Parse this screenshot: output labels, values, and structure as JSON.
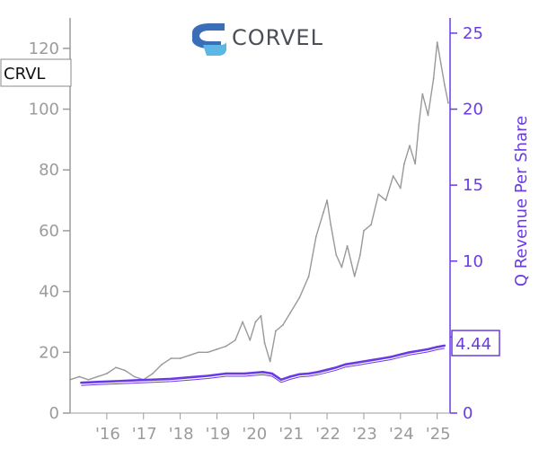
{
  "logo": {
    "text": "CORVEL"
  },
  "ticker": "CRVL",
  "last_value_label": "4.44",
  "colors": {
    "price": "#999999",
    "revenue": "#6a3be4",
    "left_axis": "#9b9b9b",
    "logo_blue_dark": "#3a6fb8",
    "logo_blue_light": "#5db7e4"
  },
  "chart_data": {
    "type": "line",
    "xlabel": "",
    "ylabel_left": "",
    "ylabel_right": "Q Revenue Per Share",
    "x_tick_labels": [
      "'16",
      "'17",
      "'18",
      "'19",
      "'20",
      "'21",
      "'22",
      "'23",
      "'24",
      "'25"
    ],
    "x_tick_years": [
      2016,
      2017,
      2018,
      2019,
      2020,
      2021,
      2022,
      2023,
      2024,
      2025
    ],
    "xlim": [
      2015.0,
      2025.35
    ],
    "ylim_left": [
      0,
      130
    ],
    "yticks_left": [
      0,
      20,
      40,
      60,
      80,
      100,
      120
    ],
    "ylim_right": [
      0,
      26
    ],
    "yticks_right": [
      0,
      5,
      10,
      15,
      20,
      25
    ],
    "series": [
      {
        "axis": "left",
        "x": [
          2015.0,
          2015.25,
          2015.5,
          2015.75,
          2016.0,
          2016.25,
          2016.5,
          2016.75,
          2017.0,
          2017.25,
          2017.5,
          2017.75,
          2018.0,
          2018.25,
          2018.5,
          2018.75,
          2019.0,
          2019.25,
          2019.5,
          2019.7,
          2019.9,
          2020.05,
          2020.2,
          2020.3,
          2020.45,
          2020.6,
          2020.8,
          2021.0,
          2021.25,
          2021.5,
          2021.7,
          2021.9,
          2022.0,
          2022.1,
          2022.25,
          2022.4,
          2022.55,
          2022.75,
          2022.9,
          2023.0,
          2023.2,
          2023.4,
          2023.6,
          2023.8,
          2024.0,
          2024.1,
          2024.25,
          2024.4,
          2024.5,
          2024.6,
          2024.75,
          2024.9,
          2025.0,
          2025.1,
          2025.2,
          2025.3
        ],
        "values": [
          11,
          12,
          11,
          12,
          13,
          15,
          14,
          12,
          11,
          13,
          16,
          18,
          18,
          19,
          20,
          20,
          21,
          22,
          24,
          30,
          24,
          30,
          32,
          23,
          17,
          27,
          29,
          33,
          38,
          45,
          58,
          66,
          70,
          62,
          52,
          48,
          55,
          45,
          52,
          60,
          62,
          72,
          70,
          78,
          74,
          82,
          88,
          82,
          95,
          105,
          98,
          110,
          122,
          115,
          108,
          102
        ]
      },
      {
        "axis": "right",
        "x": [
          2015.3,
          2015.75,
          2016.25,
          2016.75,
          2017.25,
          2017.75,
          2018.25,
          2018.75,
          2019.25,
          2019.75,
          2020.25,
          2020.5,
          2020.75,
          2021.0,
          2021.25,
          2021.5,
          2021.75,
          2022.0,
          2022.25,
          2022.5,
          2022.75,
          2023.0,
          2023.25,
          2023.5,
          2023.75,
          2024.0,
          2024.25,
          2024.5,
          2024.75,
          2025.0,
          2025.2
        ],
        "values": [
          2.0,
          2.05,
          2.1,
          2.15,
          2.2,
          2.25,
          2.35,
          2.45,
          2.6,
          2.6,
          2.7,
          2.6,
          2.2,
          2.4,
          2.55,
          2.6,
          2.7,
          2.85,
          3.0,
          3.2,
          3.3,
          3.4,
          3.5,
          3.6,
          3.7,
          3.85,
          4.0,
          4.1,
          4.2,
          4.35,
          4.44
        ]
      }
    ]
  }
}
